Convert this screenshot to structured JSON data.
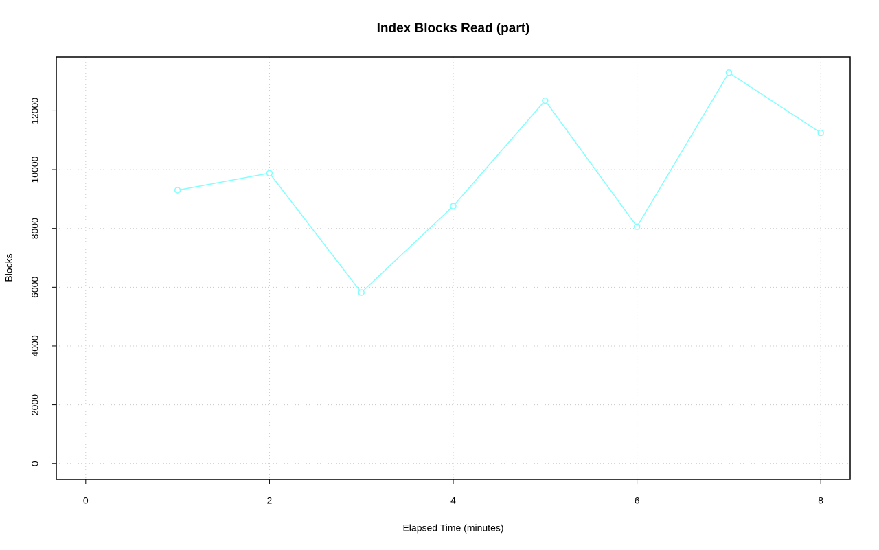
{
  "chart_data": {
    "type": "line",
    "title": "Index Blocks Read (part)",
    "x_label": "Elapsed Time (minutes)",
    "y_label": "Blocks",
    "x": [
      1,
      2,
      3,
      4,
      5,
      6,
      7,
      8
    ],
    "series": [
      {
        "color": "#80ffff",
        "values": [
          9300,
          9880,
          5820,
          8760,
          12350,
          8060,
          13300,
          11250
        ]
      }
    ],
    "xlim": [
      -0.32,
      8.32
    ],
    "xticks": [
      0,
      2,
      4,
      6,
      8
    ],
    "ylim": [
      -532,
      13832
    ],
    "yticks": [
      0,
      2000,
      4000,
      6000,
      8000,
      10000,
      12000
    ],
    "grid": true
  }
}
